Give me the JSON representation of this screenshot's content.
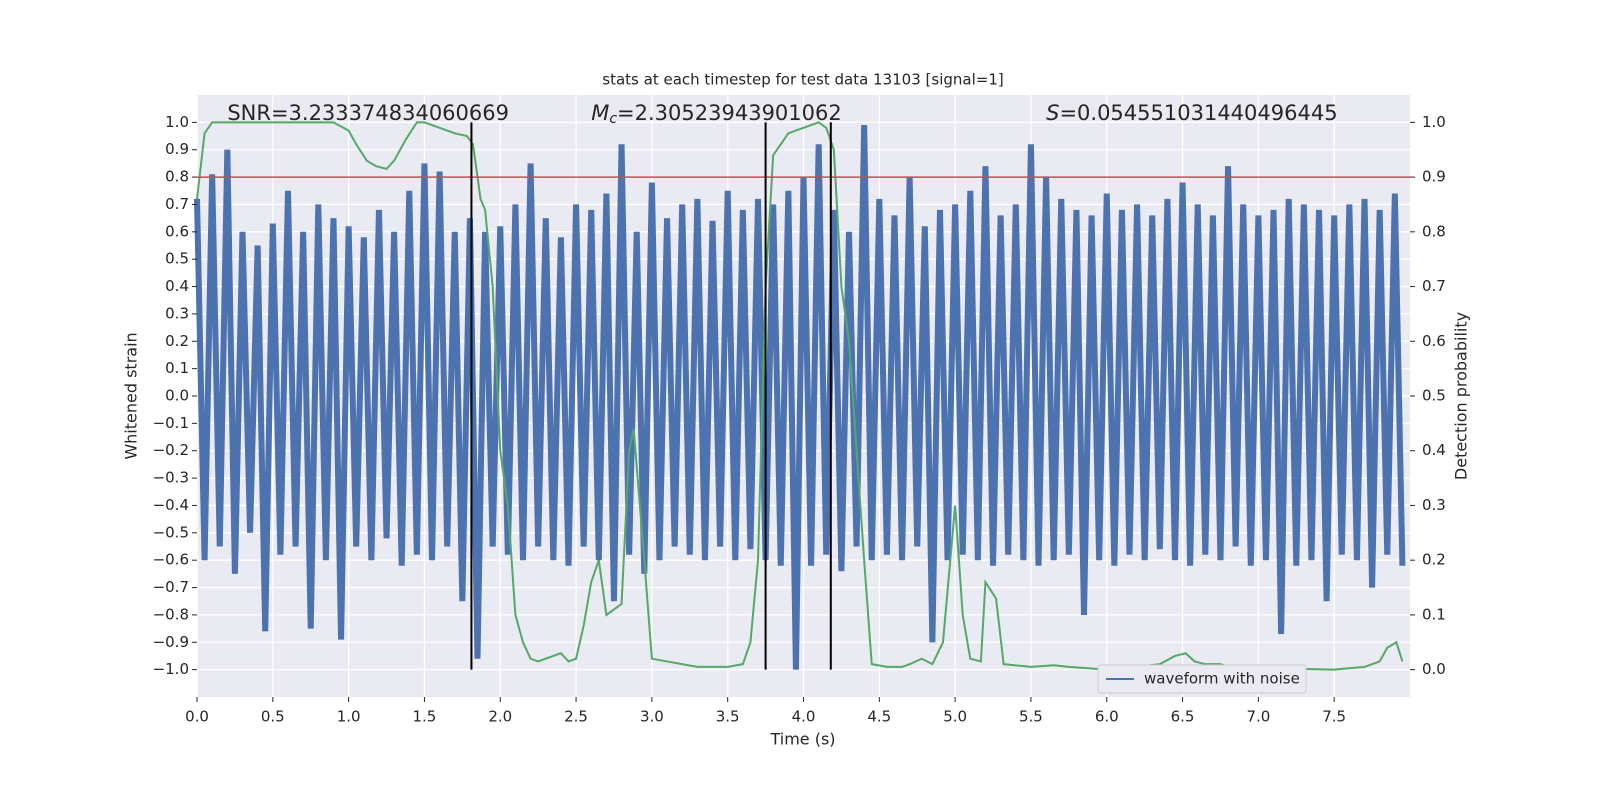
{
  "chart_data": {
    "type": "line",
    "title": "stats at each timestep for test data 13103 [signal=1]",
    "xlabel": "Time (s)",
    "ylabel": "Whitened strain",
    "y2label": "Detection probability",
    "annotations": [
      {
        "text": "SNR=3.233374834060669",
        "x": 0.2,
        "y": 1.03
      },
      {
        "symbol": "M",
        "subscript": "c",
        "text": "=2.30523943901062",
        "x": 2.6,
        "y": 1.03
      },
      {
        "symbol": "S",
        "text": "=0.054551031440496445",
        "x": 5.6,
        "y": 1.03
      }
    ],
    "xlim": [
      0,
      8
    ],
    "ylim": [
      -1.1,
      1.1
    ],
    "y2lim": [
      -0.05,
      1.05
    ],
    "xticks": [
      {
        "value": 0,
        "label": "0.0"
      },
      {
        "value": 0.5,
        "label": "0.5"
      },
      {
        "value": 1,
        "label": "1.0"
      },
      {
        "value": 1.5,
        "label": "1.5"
      },
      {
        "value": 2,
        "label": "2.0"
      },
      {
        "value": 2.5,
        "label": "2.5"
      },
      {
        "value": 3,
        "label": "3.0"
      },
      {
        "value": 3.5,
        "label": "3.5"
      },
      {
        "value": 4,
        "label": "4.0"
      },
      {
        "value": 4.5,
        "label": "4.5"
      },
      {
        "value": 5,
        "label": "5.0"
      },
      {
        "value": 5.5,
        "label": "5.5"
      },
      {
        "value": 6,
        "label": "6.0"
      },
      {
        "value": 6.5,
        "label": "6.5"
      },
      {
        "value": 7,
        "label": "7.0"
      },
      {
        "value": 7.5,
        "label": "7.5"
      }
    ],
    "yticks": [
      {
        "value": -1,
        "label": "−1.0"
      },
      {
        "value": -0.9,
        "label": "−0.9"
      },
      {
        "value": -0.8,
        "label": "−0.8"
      },
      {
        "value": -0.7,
        "label": "−0.7"
      },
      {
        "value": -0.6,
        "label": "−0.6"
      },
      {
        "value": -0.5,
        "label": "−0.5"
      },
      {
        "value": -0.4,
        "label": "−0.4"
      },
      {
        "value": -0.3,
        "label": "−0.3"
      },
      {
        "value": -0.2,
        "label": "−0.2"
      },
      {
        "value": -0.1,
        "label": "−0.1"
      },
      {
        "value": 0,
        "label": "0.0"
      },
      {
        "value": 0.1,
        "label": "0.1"
      },
      {
        "value": 0.2,
        "label": "0.2"
      },
      {
        "value": 0.3,
        "label": "0.3"
      },
      {
        "value": 0.4,
        "label": "0.4"
      },
      {
        "value": 0.5,
        "label": "0.5"
      },
      {
        "value": 0.6,
        "label": "0.6"
      },
      {
        "value": 0.7,
        "label": "0.7"
      },
      {
        "value": 0.8,
        "label": "0.8"
      },
      {
        "value": 0.9,
        "label": "0.9"
      },
      {
        "value": 1,
        "label": "1.0"
      }
    ],
    "y2ticks": [
      {
        "value": 0,
        "label": "0.0"
      },
      {
        "value": 0.1,
        "label": "0.1"
      },
      {
        "value": 0.2,
        "label": "0.2"
      },
      {
        "value": 0.3,
        "label": "0.3"
      },
      {
        "value": 0.4,
        "label": "0.4"
      },
      {
        "value": 0.5,
        "label": "0.5"
      },
      {
        "value": 0.6,
        "label": "0.6"
      },
      {
        "value": 0.7,
        "label": "0.7"
      },
      {
        "value": 0.8,
        "label": "0.8"
      },
      {
        "value": 0.9,
        "label": "0.9"
      },
      {
        "value": 1,
        "label": "1.0"
      }
    ],
    "grid": true,
    "legend": "lower right",
    "threshold": {
      "value": 0.8,
      "color": "#c44e52"
    },
    "vlines": {
      "x": [
        1.81,
        3.75,
        4.18
      ],
      "ymin": -1,
      "ymax": 1,
      "color": "#000000"
    },
    "series": [
      {
        "name": "waveform with noise",
        "color": "#4c72b0",
        "x": [
          0,
          0.05,
          0.1,
          0.15,
          0.2,
          0.25,
          0.3,
          0.35,
          0.4,
          0.45,
          0.5,
          0.55,
          0.6,
          0.65,
          0.7,
          0.75,
          0.8,
          0.85,
          0.9,
          0.95,
          1,
          1.05,
          1.1,
          1.15,
          1.2,
          1.25,
          1.3,
          1.35,
          1.4,
          1.45,
          1.5,
          1.55,
          1.6,
          1.65,
          1.7,
          1.75,
          1.8,
          1.85,
          1.9,
          1.95,
          2,
          2.05,
          2.1,
          2.15,
          2.2,
          2.25,
          2.3,
          2.35,
          2.4,
          2.45,
          2.5,
          2.55,
          2.6,
          2.65,
          2.7,
          2.75,
          2.8,
          2.85,
          2.9,
          2.95,
          3,
          3.05,
          3.1,
          3.15,
          3.2,
          3.25,
          3.3,
          3.35,
          3.4,
          3.45,
          3.5,
          3.55,
          3.6,
          3.65,
          3.7,
          3.75,
          3.8,
          3.85,
          3.9,
          3.95,
          4,
          4.05,
          4.1,
          4.15,
          4.2,
          4.25,
          4.3,
          4.35,
          4.4,
          4.45,
          4.5,
          4.55,
          4.6,
          4.65,
          4.7,
          4.75,
          4.8,
          4.85,
          4.9,
          4.95,
          5,
          5.05,
          5.1,
          5.15,
          5.2,
          5.25,
          5.3,
          5.35,
          5.4,
          5.45,
          5.5,
          5.55,
          5.6,
          5.65,
          5.7,
          5.75,
          5.8,
          5.85,
          5.9,
          5.95,
          6,
          6.05,
          6.1,
          6.15,
          6.2,
          6.25,
          6.3,
          6.35,
          6.4,
          6.45,
          6.5,
          6.55,
          6.6,
          6.65,
          6.7,
          6.75,
          6.8,
          6.85,
          6.9,
          6.95,
          7,
          7.05,
          7.1,
          7.15,
          7.2,
          7.25,
          7.3,
          7.35,
          7.4,
          7.45,
          7.5,
          7.55,
          7.6,
          7.65,
          7.7,
          7.75,
          7.8,
          7.85,
          7.9,
          7.95
        ],
        "values": [
          0.72,
          -0.6,
          0.81,
          -0.55,
          0.9,
          -0.65,
          0.6,
          -0.5,
          0.55,
          -0.86,
          0.63,
          -0.58,
          0.75,
          -0.55,
          0.6,
          -0.85,
          0.7,
          -0.6,
          0.65,
          -0.89,
          0.62,
          -0.55,
          0.58,
          -0.6,
          0.68,
          -0.52,
          0.6,
          -0.62,
          0.75,
          -0.58,
          0.85,
          -0.6,
          0.82,
          -0.55,
          0.6,
          -0.75,
          0.65,
          -0.96,
          0.6,
          -0.55,
          0.62,
          -0.58,
          0.7,
          -0.6,
          0.85,
          -0.55,
          0.65,
          -0.6,
          0.58,
          -0.62,
          0.7,
          -0.55,
          0.68,
          -0.6,
          0.74,
          -0.75,
          0.92,
          -0.58,
          0.6,
          -0.65,
          0.78,
          -0.6,
          0.65,
          -0.55,
          0.7,
          -0.58,
          0.72,
          -0.6,
          0.64,
          -0.55,
          0.75,
          -0.6,
          0.68,
          -0.56,
          0.72,
          -0.6,
          0.7,
          -0.62,
          0.75,
          -1.0,
          0.8,
          -0.62,
          0.92,
          -0.58,
          0.68,
          -0.64,
          0.6,
          -0.55,
          0.99,
          -0.6,
          0.72,
          -0.58,
          0.66,
          -0.6,
          0.8,
          -0.55,
          0.62,
          -0.9,
          0.68,
          -0.6,
          0.7,
          -0.58,
          0.75,
          -0.6,
          0.84,
          -0.62,
          0.66,
          -0.58,
          0.7,
          -0.6,
          0.92,
          -0.62,
          0.8,
          -0.6,
          0.72,
          -0.58,
          0.68,
          -0.8,
          0.66,
          -0.6,
          0.74,
          -0.62,
          0.68,
          -0.58,
          0.7,
          -0.6,
          0.66,
          -0.56,
          0.72,
          -0.6,
          0.78,
          -0.62,
          0.7,
          -0.58,
          0.66,
          -0.6,
          0.84,
          -0.55,
          0.7,
          -0.62,
          0.66,
          -0.6,
          0.68,
          -0.87,
          0.72,
          -0.62,
          0.7,
          -0.6,
          0.68,
          -0.75,
          0.66,
          -0.58,
          0.7,
          -0.6,
          0.72,
          -0.7,
          0.68,
          -0.58,
          0.74,
          -0.62
        ]
      },
      {
        "name": "Detection probability",
        "color": "#55a868",
        "axis": "y2",
        "x": [
          0,
          0.05,
          0.1,
          0.3,
          0.6,
          0.9,
          1,
          1.05,
          1.12,
          1.18,
          1.25,
          1.3,
          1.38,
          1.45,
          1.5,
          1.6,
          1.7,
          1.78,
          1.82,
          1.87,
          1.9,
          1.95,
          2,
          2.05,
          2.1,
          2.15,
          2.2,
          2.25,
          2.3,
          2.4,
          2.45,
          2.5,
          2.55,
          2.6,
          2.65,
          2.7,
          2.75,
          2.8,
          2.85,
          2.88,
          2.95,
          3,
          3.1,
          3.3,
          3.5,
          3.6,
          3.65,
          3.7,
          3.75,
          3.8,
          3.9,
          4,
          4.1,
          4.15,
          4.2,
          4.25,
          4.3,
          4.35,
          4.4,
          4.45,
          4.55,
          4.65,
          4.7,
          4.78,
          4.85,
          4.92,
          5,
          5.05,
          5.1,
          5.17,
          5.2,
          5.27,
          5.32,
          5.5,
          5.65,
          5.75,
          6,
          6.2,
          6.35,
          6.45,
          6.52,
          6.58,
          6.65,
          6.75,
          6.8,
          7,
          7.5,
          7.7,
          7.8,
          7.85,
          7.91,
          7.95
        ],
        "values": [
          0.86,
          0.98,
          1.0,
          1.0,
          1.0,
          1.0,
          0.985,
          0.96,
          0.93,
          0.92,
          0.915,
          0.93,
          0.97,
          1.0,
          1.0,
          0.99,
          0.98,
          0.975,
          0.96,
          0.86,
          0.84,
          0.7,
          0.4,
          0.3,
          0.1,
          0.05,
          0.02,
          0.015,
          0.02,
          0.03,
          0.015,
          0.02,
          0.08,
          0.16,
          0.2,
          0.1,
          0.11,
          0.12,
          0.4,
          0.44,
          0.2,
          0.02,
          0.015,
          0.005,
          0.005,
          0.01,
          0.05,
          0.2,
          0.7,
          0.94,
          0.98,
          0.99,
          1.0,
          0.99,
          0.95,
          0.7,
          0.6,
          0.4,
          0.2,
          0.01,
          0.005,
          0.005,
          0.01,
          0.02,
          0.01,
          0.05,
          0.3,
          0.1,
          0.02,
          0.015,
          0.16,
          0.13,
          0.01,
          0.005,
          0.008,
          0.005,
          0,
          0.005,
          0.01,
          0.025,
          0.03,
          0.015,
          0.01,
          0.01,
          0.005,
          0.003,
          0,
          0.005,
          0.015,
          0.04,
          0.05,
          0.015
        ]
      }
    ]
  }
}
